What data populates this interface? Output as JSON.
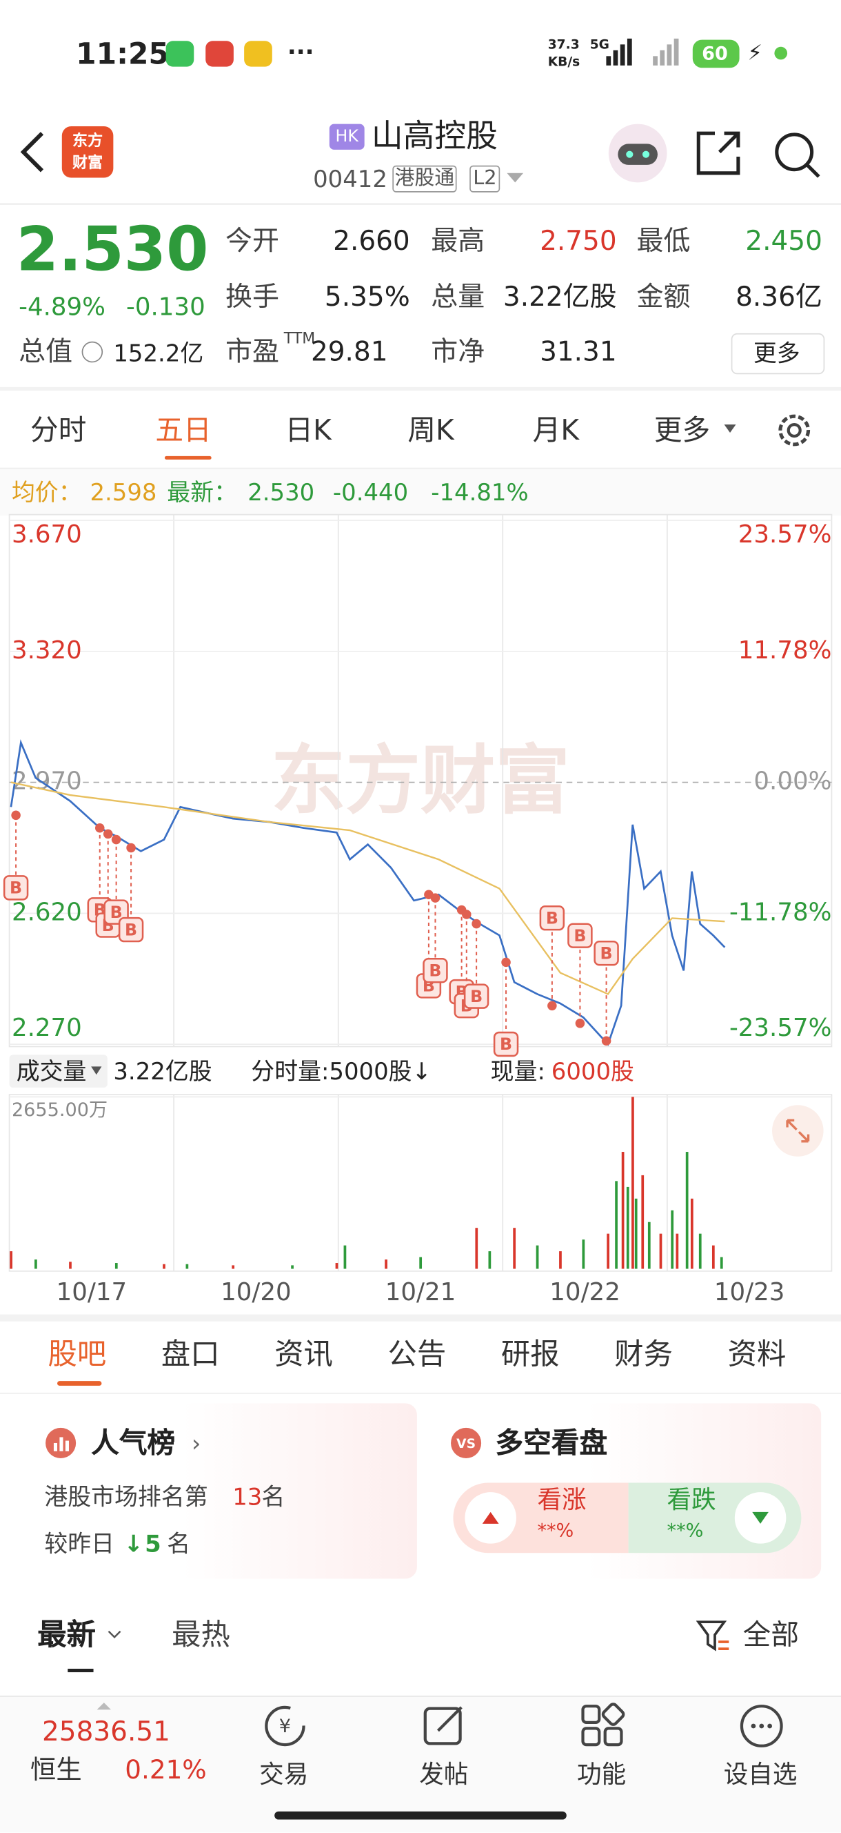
{
  "status_bar": {
    "time": "11:25",
    "net_speed": "37.3",
    "net_unit": "KB/s",
    "network": "5G",
    "battery": "60"
  },
  "header": {
    "logo": [
      "东方",
      "财富"
    ],
    "market": "HK",
    "name": "山高控股",
    "code": "00412",
    "tags": [
      "港股通",
      "L2"
    ]
  },
  "quote": {
    "price": "2.530",
    "change_pct": "-4.89%",
    "change": "-0.130",
    "fields": [
      {
        "label": "今开",
        "value": "2.660"
      },
      {
        "label": "最高",
        "value": "2.750"
      },
      {
        "label": "最低",
        "value": "2.450"
      },
      {
        "label": "换手",
        "value": "5.35%"
      },
      {
        "label": "总量",
        "value": "3.22亿股"
      },
      {
        "label": "金额",
        "value": "8.36亿"
      },
      {
        "label": "总值",
        "value": "152.2亿"
      },
      {
        "label": "市盈",
        "sup": "TTM",
        "value": "29.81"
      },
      {
        "label": "市净",
        "value": "31.31"
      }
    ],
    "more": "更多"
  },
  "period_tabs": [
    "分时",
    "五日",
    "日K",
    "周K",
    "月K",
    "更多"
  ],
  "chart_legend": {
    "avg_label": "均价：",
    "avg": "2.598",
    "latest_label": "最新：",
    "latest": "2.530",
    "change": "-0.440",
    "change_pct": "-14.81%"
  },
  "chart_data": {
    "type": "line",
    "watermark": "东方财富",
    "xlim": [
      0,
      5
    ],
    "xticks": [
      {
        "value": 0.5,
        "label": "10/17"
      },
      {
        "value": 1.5,
        "label": "10/20"
      },
      {
        "value": 2.5,
        "label": "10/21"
      },
      {
        "value": 3.5,
        "label": "10/22"
      },
      {
        "value": 4.5,
        "label": "10/23"
      }
    ],
    "ylim": [
      2.27,
      3.67
    ],
    "yticks": [
      {
        "value": 3.67,
        "label": "3.670"
      },
      {
        "value": 3.32,
        "label": "3.320"
      },
      {
        "value": 2.97,
        "label": "2.970"
      },
      {
        "value": 2.62,
        "label": "2.620"
      },
      {
        "value": 2.27,
        "label": "2.270"
      }
    ],
    "y2lim": [
      -23.57,
      23.57
    ],
    "y2ticks": [
      {
        "value": 23.57,
        "label": "23.57%"
      },
      {
        "value": 11.78,
        "label": "11.78%"
      },
      {
        "value": 0,
        "label": "0.00%"
      },
      {
        "value": -11.78,
        "label": "-11.78%"
      },
      {
        "value": -23.57,
        "label": "-23.57%"
      }
    ],
    "series": [
      {
        "color": "#3a6fc4",
        "x": [
          0.01,
          0.07,
          0.16,
          0.37,
          0.55,
          0.65,
          0.8,
          0.94,
          1.04,
          1.19,
          1.36,
          1.58,
          1.79,
          1.99,
          2.07,
          2.18,
          2.32,
          2.46,
          2.61,
          2.75,
          2.86,
          2.98,
          3.07,
          3.21,
          3.35,
          3.49,
          3.64,
          3.72,
          3.79,
          3.86,
          3.96,
          4.03,
          4.1,
          4.15,
          4.2,
          4.28,
          4.35
        ],
        "values": [
          2.904,
          3.076,
          2.982,
          2.92,
          2.848,
          2.826,
          2.786,
          2.817,
          2.904,
          2.889,
          2.873,
          2.864,
          2.848,
          2.836,
          2.764,
          2.804,
          2.742,
          2.654,
          2.67,
          2.623,
          2.592,
          2.561,
          2.436,
          2.404,
          2.379,
          2.342,
          2.27,
          2.373,
          2.857,
          2.686,
          2.732,
          2.561,
          2.467,
          2.732,
          2.592,
          2.561,
          2.529
        ]
      },
      {
        "color": "#e8c060",
        "x": [
          0.01,
          0.37,
          0.94,
          1.58,
          2.07,
          2.61,
          2.98,
          3.35,
          3.64,
          3.79,
          4.03,
          4.35
        ],
        "values": [
          2.97,
          2.936,
          2.904,
          2.864,
          2.842,
          2.764,
          2.686,
          2.461,
          2.404,
          2.498,
          2.607,
          2.598
        ]
      }
    ],
    "markers": [
      {
        "label": "B",
        "x": 0.04,
        "value": 2.882
      },
      {
        "label": "B",
        "x": 0.55,
        "value": 2.848
      },
      {
        "label": "B",
        "x": 0.6,
        "value": 2.832
      },
      {
        "label": "B",
        "x": 0.65,
        "value": 2.817
      },
      {
        "label": "B",
        "x": 0.74,
        "value": 2.795
      },
      {
        "label": "B",
        "x": 2.55,
        "value": 2.67
      },
      {
        "label": "B",
        "x": 2.59,
        "value": 2.661
      },
      {
        "label": "B",
        "x": 2.75,
        "value": 2.629
      },
      {
        "label": "B",
        "x": 2.78,
        "value": 2.617
      },
      {
        "label": "B",
        "x": 2.84,
        "value": 2.592
      },
      {
        "label": "B",
        "x": 3.02,
        "value": 2.489
      },
      {
        "label": "B",
        "x": 3.3,
        "value": 2.373
      },
      {
        "label": "B",
        "x": 3.47,
        "value": 2.326
      },
      {
        "label": "B",
        "x": 3.63,
        "value": 2.279
      }
    ]
  },
  "volume_chart": {
    "type": "bar",
    "label": "成交量",
    "total": "3.22亿股",
    "unit_setting": "分时量:5000股↓",
    "current_label": "现量:",
    "current": "6000股",
    "ylim": [
      0,
      2655
    ],
    "yticks": [
      {
        "value": 2655,
        "label": "2655.00万"
      }
    ],
    "x": [
      0.01,
      0.16,
      0.37,
      0.65,
      0.94,
      1.08,
      1.36,
      1.72,
      1.99,
      2.04,
      2.29,
      2.5,
      2.84,
      2.92,
      3.07,
      3.21,
      3.35,
      3.49,
      3.64,
      3.69,
      3.73,
      3.76,
      3.79,
      3.81,
      3.85,
      3.89,
      3.96,
      4.03,
      4.06,
      4.12,
      4.15,
      4.2,
      4.28,
      4.33
    ],
    "values": [
      271,
      144,
      108,
      90,
      72,
      72,
      54,
      54,
      90,
      361,
      144,
      181,
      632,
      271,
      632,
      361,
      271,
      452,
      542,
      1355,
      1806,
      1264,
      2655,
      1084,
      1445,
      722,
      542,
      903,
      542,
      1806,
      1084,
      542,
      361,
      181
    ]
  },
  "section_tabs": [
    "股吧",
    "盘口",
    "资讯",
    "公告",
    "研报",
    "财务",
    "资料"
  ],
  "popularity": {
    "title": "人气榜",
    "rank_pre": "港股市场排名第",
    "rank": "13",
    "rank_post": "名",
    "compare_pre": "较昨日",
    "compare_value": "5",
    "compare_post": "名"
  },
  "sentiment": {
    "title": "多空看盘",
    "bull": "看涨",
    "bull_pct": "**%",
    "bear": "看跌",
    "bear_pct": "**%"
  },
  "feed_tabs": [
    "最新",
    "最热"
  ],
  "filter": "全部",
  "bottom_nav": {
    "index_value": "25836.51",
    "index_name": "恒生",
    "index_change": "0.21%",
    "items": [
      "交易",
      "发帖",
      "功能",
      "设自选"
    ]
  }
}
